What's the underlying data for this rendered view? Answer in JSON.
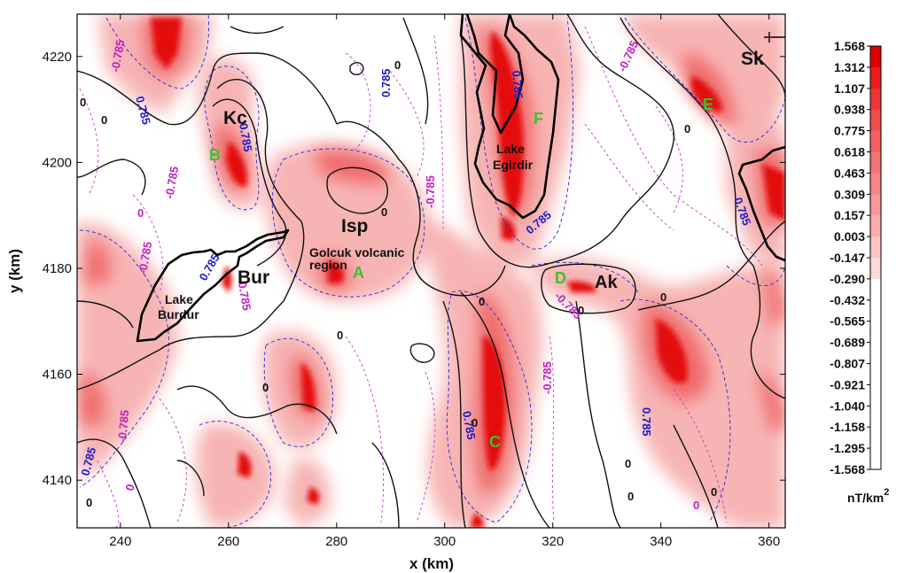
{
  "axes": {
    "xlabel": "x (km)",
    "ylabel": "y (km)",
    "xticks": [
      "240",
      "260",
      "280",
      "300",
      "320",
      "340",
      "360"
    ],
    "yticks": [
      "4220",
      "4200",
      "4180",
      "4160",
      "4140"
    ],
    "xlim": [
      232,
      363
    ],
    "ylim": [
      4131,
      4228
    ]
  },
  "places": {
    "kc": "Kc",
    "isp": "Isp",
    "bur": "Bur",
    "ak": "Ak",
    "sk": "Sk",
    "golcuk_line1": "Golcuk volcanic",
    "golcuk_line2": "region",
    "lake_burdur_1": "Lake",
    "lake_burdur_2": "Burdur",
    "lake_egirdir_1": "Lake",
    "lake_egirdir_2": "Egirdir"
  },
  "zone_letters": {
    "a": "A",
    "b": "B",
    "c": "C",
    "d": "D",
    "e": "E",
    "f": "F"
  },
  "contour_labels": {
    "zero": "0",
    "positive": "0.785",
    "negative": "-0.785"
  },
  "colorbar": {
    "unit": "nT/km",
    "unit_exponent": "2",
    "levels": [
      "1.568",
      "1.312",
      "1.107",
      "0.938",
      "0.775",
      "0.618",
      "0.463",
      "0.309",
      "0.157",
      "0.003",
      "-0.147",
      "-0.290",
      "-0.432",
      "-0.565",
      "-0.689",
      "-0.807",
      "-0.921",
      "-1.040",
      "-1.158",
      "-1.295",
      "-1.568"
    ],
    "colors": [
      "#e00000",
      "#e81c1c",
      "#ee3434",
      "#f14b4b",
      "#f35f5f",
      "#f57272",
      "#f78585",
      "#f99898",
      "#fbacac",
      "#fdc2c2",
      "#fedada",
      "#ffffff",
      "#ffffff",
      "#ffffff",
      "#ffffff",
      "#ffffff",
      "#ffffff",
      "#ffffff",
      "#ffffff",
      "#ffffff"
    ]
  },
  "colors": {
    "anomaly": "#e8262a",
    "positive_contour": "#1a1ac8",
    "negative_contour": "#c020c0",
    "letters": "#3fbf2f"
  }
}
